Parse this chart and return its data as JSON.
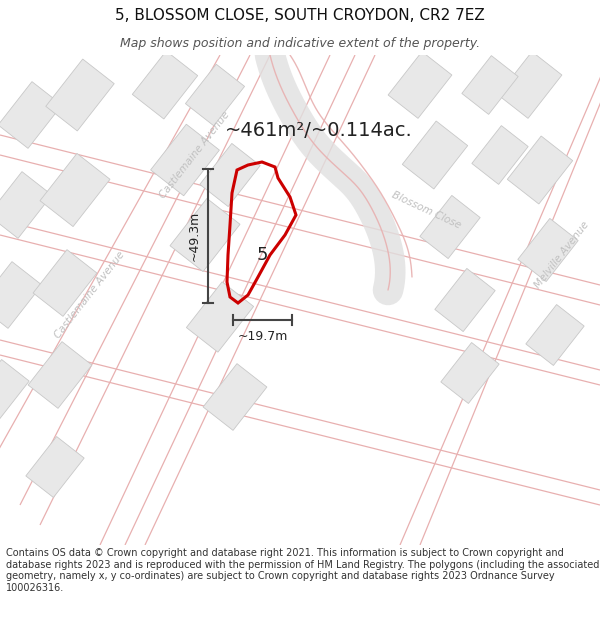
{
  "title": "5, BLOSSOM CLOSE, SOUTH CROYDON, CR2 7EZ",
  "subtitle": "Map shows position and indicative extent of the property.",
  "area_label": "~461m²/~0.114ac.",
  "width_label": "~19.7m",
  "height_label": "~49.3m",
  "property_number": "5",
  "street_blossom": "Blossom Close",
  "street_castlemaine_upper": "Castlemaine Avenue",
  "street_castlemaine_lower": "Castlemaine Avenue",
  "street_melville": "Melville Avenue",
  "footer_text": "Contains OS data © Crown copyright and database right 2021. This information is subject to Crown copyright and database rights 2023 and is reproduced with the permission of HM Land Registry. The polygons (including the associated geometry, namely x, y co-ordinates) are subject to Crown copyright and database rights 2023 Ordnance Survey 100026316.",
  "bg_color": "#ffffff",
  "map_bg": "#ffffff",
  "road_fill": "#f0f0f0",
  "road_line_color": "#e8b0b0",
  "building_fill": "#e8e8e8",
  "building_edge": "#c8c8c8",
  "plot_color": "#cc0000",
  "dim_color": "#444444",
  "label_color": "#c0c0c0",
  "text_color": "#222222",
  "title_fs": 11,
  "subtitle_fs": 9,
  "footer_fs": 7.0,
  "area_fs": 14,
  "dim_fs": 9,
  "num_fs": 13,
  "street_fs": 7.5
}
